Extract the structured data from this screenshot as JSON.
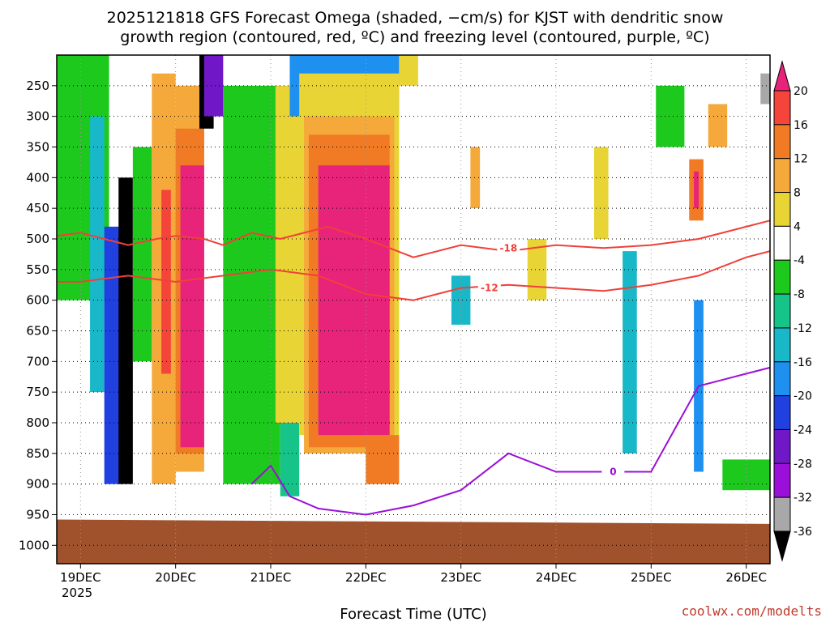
{
  "chart_data": {
    "type": "heatmap",
    "title_lines": [
      "2025121818 GFS Forecast Omega (shaded, −cm/s) for KJST with dendritic snow",
      "growth region (contoured, red, ºC) and freezing level (contoured, purple, ºC)"
    ],
    "xlabel": "Forecast Time (UTC)",
    "credit": "coolwx.com/modelts",
    "x_ticks": [
      "19DEC",
      "20DEC",
      "21DEC",
      "22DEC",
      "23DEC",
      "24DEC",
      "25DEC",
      "26DEC"
    ],
    "x_year": "2025",
    "x_range": [
      18.75,
      26.25
    ],
    "y_ticks": [
      250,
      300,
      350,
      400,
      450,
      500,
      550,
      600,
      650,
      700,
      750,
      800,
      850,
      900,
      950,
      1000
    ],
    "y_range_hpa": [
      200,
      1030
    ],
    "colorbar": {
      "tick_values": [
        20,
        16,
        12,
        8,
        4,
        -4,
        -8,
        -12,
        -16,
        -20,
        -24,
        -28,
        -32,
        -36
      ],
      "colors": {
        "gt20": "#e8237a",
        "16_20": "#f5453a",
        "12_16": "#f07b24",
        "8_12": "#f4a93a",
        "4_8": "#e8d435",
        "m4_4": "#ffffff",
        "m8_m4": "#1ec91e",
        "m12_m8": "#16c48a",
        "m16_m12": "#18b8c8",
        "m20_m16": "#1e90f0",
        "m24_m20": "#2040e0",
        "m28_m24": "#7018c8",
        "m32_m28": "#9a10d8",
        "m36_m32": "#a8a8a8",
        "lt_m36": "#000000"
      }
    },
    "omega_cells": [
      {
        "t0": 18.75,
        "t1": 19.3,
        "p0": 200,
        "p1": 600,
        "value": -6
      },
      {
        "t0": 19.1,
        "t1": 19.25,
        "p0": 300,
        "p1": 750,
        "value": -14
      },
      {
        "t0": 19.25,
        "t1": 19.45,
        "p0": 480,
        "p1": 900,
        "value": -22
      },
      {
        "t0": 19.4,
        "t1": 19.55,
        "p0": 400,
        "p1": 900,
        "value": -40
      },
      {
        "t0": 19.55,
        "t1": 19.75,
        "p0": 350,
        "p1": 700,
        "value": -6
      },
      {
        "t0": 19.75,
        "t1": 20.0,
        "p0": 230,
        "p1": 900,
        "value": 9
      },
      {
        "t0": 19.85,
        "t1": 19.95,
        "p0": 420,
        "p1": 720,
        "value": 17
      },
      {
        "t0": 20.0,
        "t1": 20.3,
        "p0": 250,
        "p1": 880,
        "value": 10
      },
      {
        "t0": 20.0,
        "t1": 20.3,
        "p0": 320,
        "p1": 850,
        "value": 14
      },
      {
        "t0": 20.05,
        "t1": 20.3,
        "p0": 380,
        "p1": 840,
        "value": 24
      },
      {
        "t0": 20.25,
        "t1": 20.4,
        "p0": 200,
        "p1": 320,
        "value": -40
      },
      {
        "t0": 20.3,
        "t1": 20.5,
        "p0": 200,
        "p1": 300,
        "value": -26
      },
      {
        "t0": 20.5,
        "t1": 21.1,
        "p0": 250,
        "p1": 900,
        "value": -6
      },
      {
        "t0": 21.05,
        "t1": 21.35,
        "p0": 250,
        "p1": 800,
        "value": 6
      },
      {
        "t0": 21.1,
        "t1": 21.3,
        "p0": 800,
        "p1": 920,
        "value": -10
      },
      {
        "t0": 21.2,
        "t1": 22.35,
        "p0": 200,
        "p1": 300,
        "value": -18
      },
      {
        "t0": 21.3,
        "t1": 22.35,
        "p0": 230,
        "p1": 820,
        "value": 6
      },
      {
        "t0": 21.35,
        "t1": 22.3,
        "p0": 300,
        "p1": 850,
        "value": 10
      },
      {
        "t0": 21.4,
        "t1": 22.25,
        "p0": 330,
        "p1": 840,
        "value": 14
      },
      {
        "t0": 21.5,
        "t1": 22.25,
        "p0": 380,
        "p1": 820,
        "value": 24
      },
      {
        "t0": 22.0,
        "t1": 22.35,
        "p0": 820,
        "p1": 900,
        "value": 12
      },
      {
        "t0": 22.35,
        "t1": 22.55,
        "p0": 200,
        "p1": 250,
        "value": 6
      },
      {
        "t0": 22.9,
        "t1": 23.1,
        "p0": 560,
        "p1": 640,
        "value": -14
      },
      {
        "t0": 23.1,
        "t1": 23.2,
        "p0": 350,
        "p1": 450,
        "value": 9
      },
      {
        "t0": 23.7,
        "t1": 23.9,
        "p0": 500,
        "p1": 600,
        "value": 6
      },
      {
        "t0": 24.4,
        "t1": 24.55,
        "p0": 350,
        "p1": 500,
        "value": 6
      },
      {
        "t0": 24.7,
        "t1": 24.85,
        "p0": 520,
        "p1": 850,
        "value": -12
      },
      {
        "t0": 25.05,
        "t1": 25.35,
        "p0": 250,
        "p1": 350,
        "value": -6
      },
      {
        "t0": 25.4,
        "t1": 25.55,
        "p0": 370,
        "p1": 470,
        "value": 14
      },
      {
        "t0": 25.45,
        "t1": 25.5,
        "p0": 390,
        "p1": 450,
        "value": 24
      },
      {
        "t0": 25.45,
        "t1": 25.55,
        "p0": 600,
        "p1": 880,
        "value": -16
      },
      {
        "t0": 25.6,
        "t1": 25.8,
        "p0": 280,
        "p1": 350,
        "value": 9
      },
      {
        "t0": 25.75,
        "t1": 26.25,
        "p0": 860,
        "p1": 910,
        "value": -6
      },
      {
        "t0": 26.15,
        "t1": 26.25,
        "p0": 230,
        "p1": 280,
        "value": -34
      }
    ],
    "contours": [
      {
        "name": "-18C",
        "color": "#f0403a",
        "label": "-18",
        "points": [
          [
            18.75,
            495
          ],
          [
            19.0,
            490
          ],
          [
            19.5,
            510
          ],
          [
            19.8,
            500
          ],
          [
            20.0,
            495
          ],
          [
            20.3,
            500
          ],
          [
            20.5,
            510
          ],
          [
            20.8,
            490
          ],
          [
            21.1,
            500
          ],
          [
            21.6,
            480
          ],
          [
            22.0,
            500
          ],
          [
            22.5,
            530
          ],
          [
            23.0,
            510
          ],
          [
            23.5,
            520
          ],
          [
            24.0,
            510
          ],
          [
            24.5,
            515
          ],
          [
            25.0,
            510
          ],
          [
            25.5,
            500
          ],
          [
            26.0,
            480
          ],
          [
            26.25,
            470
          ]
        ],
        "label_at": [
          23.5,
          515
        ]
      },
      {
        "name": "-12C",
        "color": "#f0403a",
        "label": "-12",
        "points": [
          [
            18.75,
            570
          ],
          [
            19.0,
            570
          ],
          [
            19.5,
            560
          ],
          [
            20.0,
            570
          ],
          [
            20.5,
            560
          ],
          [
            21.0,
            550
          ],
          [
            21.5,
            560
          ],
          [
            22.0,
            590
          ],
          [
            22.5,
            600
          ],
          [
            23.0,
            580
          ],
          [
            23.5,
            575
          ],
          [
            24.0,
            580
          ],
          [
            24.5,
            585
          ],
          [
            25.0,
            575
          ],
          [
            25.5,
            560
          ],
          [
            26.0,
            530
          ],
          [
            26.25,
            520
          ]
        ],
        "label_at": [
          23.3,
          580
        ]
      },
      {
        "name": "0C",
        "color": "#9a10d8",
        "label": "0",
        "points": [
          [
            20.8,
            900
          ],
          [
            21.0,
            870
          ],
          [
            21.2,
            920
          ],
          [
            21.5,
            940
          ],
          [
            22.0,
            950
          ],
          [
            22.5,
            935
          ],
          [
            23.0,
            910
          ],
          [
            23.5,
            850
          ],
          [
            24.0,
            880
          ],
          [
            24.5,
            880
          ],
          [
            25.0,
            880
          ],
          [
            25.5,
            740
          ],
          [
            26.0,
            720
          ],
          [
            26.25,
            710
          ]
        ],
        "label_at": [
          24.6,
          880
        ]
      }
    ]
  }
}
